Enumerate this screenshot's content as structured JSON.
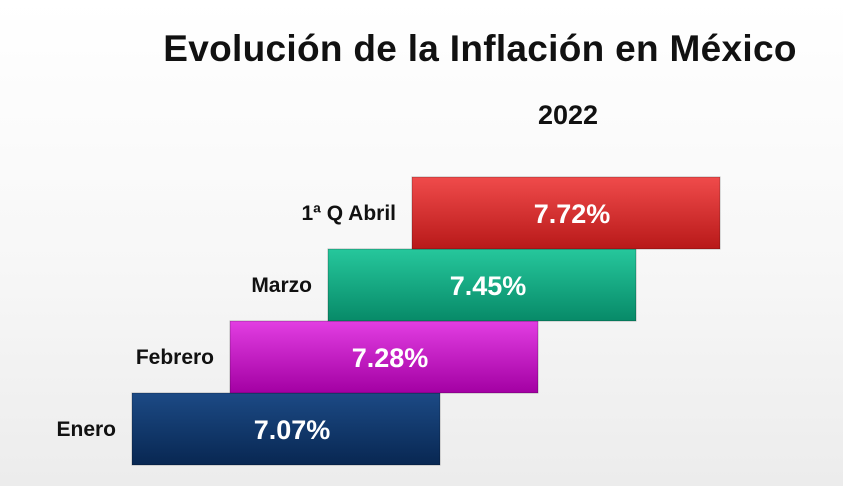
{
  "chart_data": {
    "type": "bar",
    "title": "Evolución de la Inflación en México",
    "subtitle": "2022",
    "categories": [
      "Enero",
      "Febrero",
      "Marzo",
      "1ª Q Abril"
    ],
    "values": [
      7.07,
      7.28,
      7.45,
      7.72
    ],
    "value_labels": [
      "7.07%",
      "7.28%",
      "7.45%",
      "7.72%"
    ],
    "colors": [
      "#0b3266",
      "#c40bc4",
      "#0fa883",
      "#d42a2a"
    ],
    "unit": "%"
  }
}
